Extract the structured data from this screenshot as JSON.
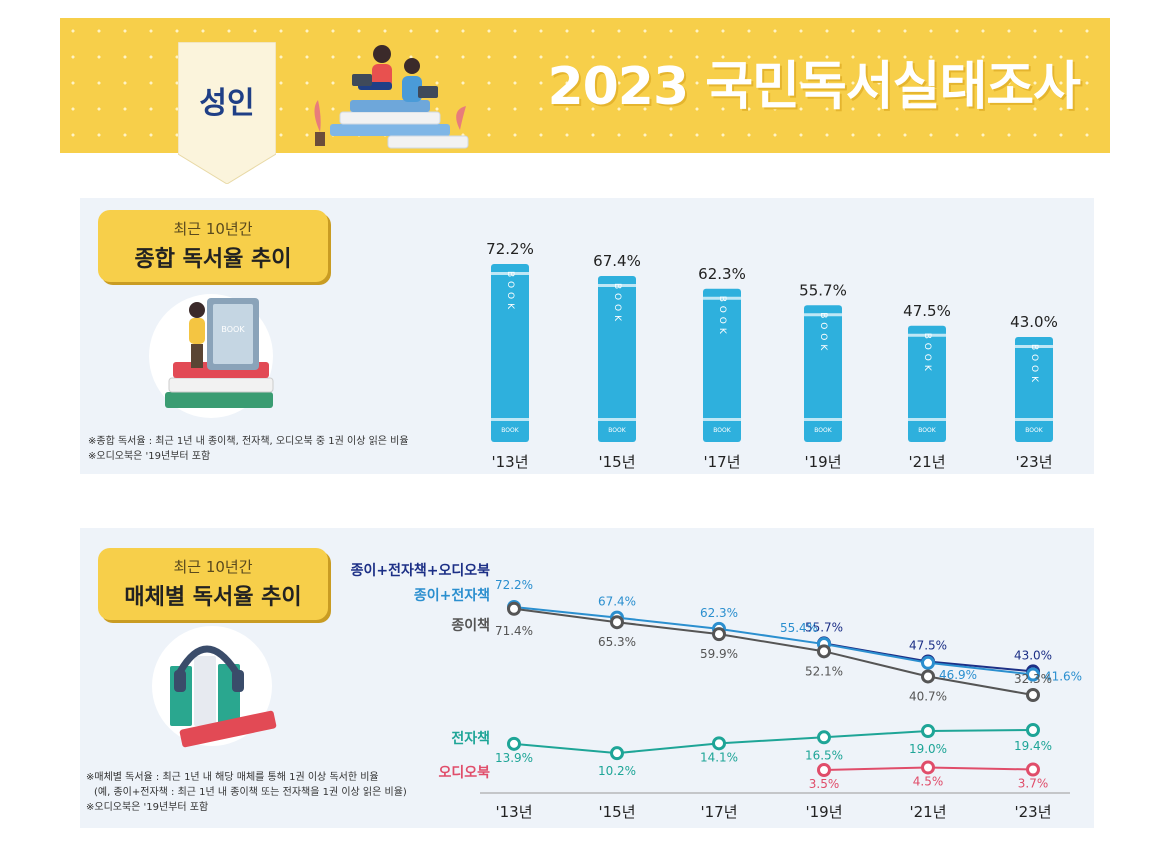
{
  "header": {
    "badge": "성인",
    "title": "2023 국민독서실태조사"
  },
  "section1": {
    "label_sub": "최근 10년간",
    "label_main": "종합 독서율 추이",
    "notes": [
      "※종합 독서율 : 최근 1년 내 종이책, 전자책, 오디오북 중 1권 이상 읽은 비율",
      "※오디오북은 '19년부터 포함"
    ]
  },
  "section2": {
    "label_sub": "최근 10년간",
    "label_main": "매체별 독서율 추이",
    "notes": [
      "※매체별 독서율 : 최근 1년 내 해당 매체를 통해 1권 이상 독서한 비율",
      "(예, 종이+전자책 : 최근 1년 내 종이책 또는 전자책을 1권 이상 읽은 비율)",
      "※오디오북은 '19년부터 포함"
    ]
  },
  "chart_data": [
    {
      "type": "bar",
      "categories": [
        "'13년",
        "'15년",
        "'17년",
        "'19년",
        "'21년",
        "'23년"
      ],
      "values": [
        72.2,
        67.4,
        62.3,
        55.7,
        47.5,
        43.0
      ],
      "value_labels": [
        "72.2%",
        "67.4%",
        "62.3%",
        "55.7%",
        "47.5%",
        "43.0%"
      ],
      "book_spine_text": "BOOK",
      "bar_color": "#2eb0dd"
    },
    {
      "type": "line",
      "categories": [
        "'13년",
        "'15년",
        "'17년",
        "'19년",
        "'21년",
        "'23년"
      ],
      "series": [
        {
          "name": "종이+전자책+오디오북",
          "color": "#1c2f86",
          "values": [
            null,
            null,
            null,
            55.7,
            47.5,
            43.0
          ],
          "labels": [
            "",
            "",
            "",
            "55.7%",
            "47.5%",
            "43.0%"
          ]
        },
        {
          "name": "종이+전자책",
          "color": "#2b8fcf",
          "values": [
            72.2,
            67.4,
            62.3,
            55.4,
            46.9,
            41.6
          ],
          "labels": [
            "72.2%",
            "67.4%",
            "62.3%",
            "55.4%",
            "46.9%",
            "41.6%"
          ]
        },
        {
          "name": "종이책",
          "color": "#555555",
          "values": [
            71.4,
            65.3,
            59.9,
            52.1,
            40.7,
            32.3
          ],
          "labels": [
            "71.4%",
            "65.3%",
            "59.9%",
            "52.1%",
            "40.7%",
            "32.3%"
          ]
        },
        {
          "name": "전자책",
          "color": "#1ea597",
          "values": [
            13.9,
            10.2,
            14.1,
            16.5,
            19.0,
            19.4
          ],
          "labels": [
            "13.9%",
            "10.2%",
            "14.1%",
            "16.5%",
            "19.0%",
            "19.4%"
          ]
        },
        {
          "name": "오디오북",
          "color": "#e04d6a",
          "values": [
            null,
            null,
            null,
            3.5,
            4.5,
            3.7
          ],
          "labels": [
            "",
            "",
            "",
            "3.5%",
            "4.5%",
            "3.7%"
          ]
        }
      ]
    }
  ]
}
